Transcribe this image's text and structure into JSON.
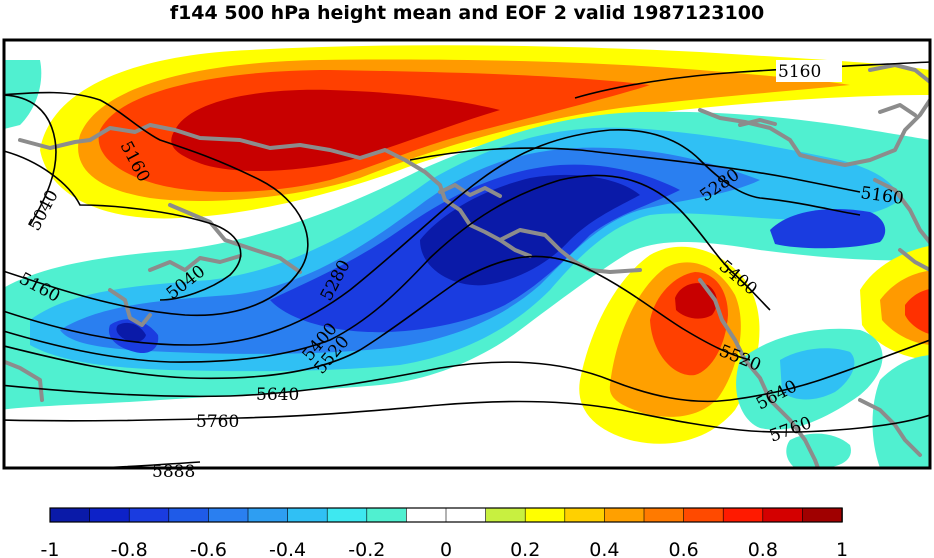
{
  "title": "f144 500 hPa height mean and EOF 2 valid 1987123100",
  "contour_labels": [
    "5160",
    "5160",
    "5040",
    "5160",
    "5040",
    "5280",
    "5280",
    "5400",
    "5520",
    "5640",
    "5760",
    "5888",
    "5400",
    "5520",
    "5640",
    "5760",
    "5160"
  ],
  "colorbar": {
    "ticks": [
      "-1",
      "-0.8",
      "-0.6",
      "-0.4",
      "-0.2",
      "0",
      "0.2",
      "0.4",
      "0.6",
      "0.8",
      "1"
    ],
    "colors": [
      "#0a1aa8",
      "#0d22c8",
      "#1a3ce0",
      "#1f5be8",
      "#2a7ff0",
      "#2e9ef2",
      "#30c0f4",
      "#3ee8f0",
      "#50f0d0",
      "#ffffff",
      "#ffffff",
      "#c8f040",
      "#ffff00",
      "#ffd000",
      "#ffa000",
      "#ff7a00",
      "#ff4a00",
      "#ff1a00",
      "#d40000",
      "#a00000"
    ]
  },
  "colors": {
    "frame": "#000000",
    "coast": "#8c8c8c",
    "contour": "#000000"
  }
}
